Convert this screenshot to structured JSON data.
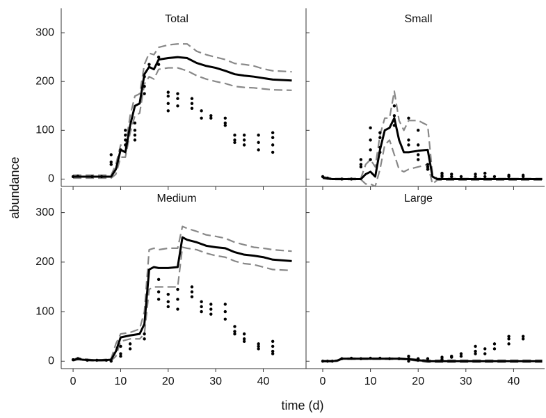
{
  "figure": {
    "xlabel": "time (d)",
    "ylabel": "abundance"
  },
  "chart_data": [
    {
      "type": "line",
      "title": "Total",
      "xlim": [
        -2.5,
        49
      ],
      "ylim": [
        -15,
        350
      ],
      "xticks": [
        0,
        10,
        20,
        30,
        40
      ],
      "yticks": [
        0,
        100,
        200,
        300
      ],
      "tick_labels": {
        "x": false,
        "y": true
      },
      "x": [
        0,
        2,
        4,
        6,
        8,
        9,
        10,
        11,
        12,
        13,
        14,
        15,
        16,
        17,
        18,
        20,
        22,
        24,
        26,
        28,
        30,
        32,
        34,
        36,
        38,
        40,
        42,
        46
      ],
      "series": [
        {
          "color": "#000000",
          "style": "solid",
          "values": [
            5,
            5,
            5,
            5,
            5,
            20,
            60,
            55,
            110,
            150,
            155,
            215,
            230,
            225,
            245,
            248,
            250,
            248,
            238,
            232,
            228,
            222,
            215,
            212,
            210,
            207,
            204,
            202
          ]
        },
        {
          "color": "#888888",
          "style": "dashed",
          "values": [
            8,
            8,
            8,
            8,
            8,
            30,
            70,
            65,
            130,
            170,
            175,
            235,
            258,
            255,
            270,
            275,
            277,
            277,
            262,
            255,
            250,
            245,
            237,
            235,
            232,
            226,
            222,
            220
          ]
        },
        {
          "color": "#888888",
          "style": "dashed",
          "values": [
            2,
            2,
            2,
            2,
            2,
            10,
            45,
            45,
            95,
            130,
            135,
            195,
            210,
            205,
            225,
            228,
            228,
            222,
            212,
            205,
            200,
            196,
            190,
            188,
            187,
            185,
            183,
            182
          ]
        }
      ],
      "points": {
        "color": "#000000",
        "x": [
          0,
          1,
          4,
          6,
          8,
          8,
          8,
          10,
          11,
          11,
          11,
          11,
          13,
          13,
          13,
          13,
          15,
          15,
          15,
          16,
          18,
          18,
          20,
          20,
          20,
          20,
          22,
          22,
          22,
          25,
          25,
          25,
          27,
          27,
          29,
          29,
          32,
          32,
          32,
          34,
          34,
          34,
          36,
          36,
          36,
          39,
          39,
          39,
          42,
          42,
          42,
          42
        ],
        "y": [
          5,
          6,
          5,
          5,
          50,
          35,
          30,
          60,
          100,
          90,
          80,
          70,
          115,
          100,
          90,
          80,
          210,
          190,
          175,
          235,
          250,
          235,
          178,
          170,
          155,
          140,
          175,
          165,
          150,
          165,
          155,
          145,
          140,
          125,
          130,
          125,
          125,
          115,
          110,
          90,
          80,
          75,
          90,
          80,
          70,
          90,
          75,
          60,
          95,
          85,
          70,
          55
        ]
      }
    },
    {
      "type": "line",
      "title": "Small",
      "xlim": [
        -3.5,
        46.5
      ],
      "ylim": [
        -15,
        350
      ],
      "xticks": [
        0,
        10,
        20,
        30,
        40
      ],
      "yticks": [
        0,
        100,
        200,
        300
      ],
      "tick_labels": {
        "x": false,
        "y": false
      },
      "x": [
        0,
        2,
        4,
        6,
        8,
        9,
        10,
        11,
        12,
        13,
        14,
        15,
        16,
        17,
        18,
        20,
        22,
        23,
        24,
        26,
        30,
        35,
        40,
        46
      ],
      "series": [
        {
          "color": "#000000",
          "style": "solid",
          "values": [
            3,
            0,
            0,
            0,
            0,
            10,
            15,
            5,
            60,
            100,
            105,
            125,
            80,
            55,
            55,
            58,
            60,
            5,
            0,
            0,
            0,
            0,
            0,
            0
          ]
        },
        {
          "color": "#888888",
          "style": "dashed",
          "values": [
            5,
            1,
            1,
            1,
            2,
            30,
            40,
            25,
            90,
            125,
            125,
            180,
            120,
            100,
            120,
            120,
            110,
            10,
            1,
            1,
            1,
            1,
            1,
            1
          ]
        },
        {
          "color": "#888888",
          "style": "dashed",
          "values": [
            1,
            -1,
            -1,
            -1,
            -1,
            -10,
            -10,
            -15,
            20,
            70,
            80,
            50,
            20,
            15,
            20,
            25,
            30,
            -10,
            -2,
            -2,
            -2,
            -2,
            -2,
            -2
          ]
        }
      ],
      "points": {
        "color": "#000000",
        "x": [
          0,
          1,
          4,
          6,
          8,
          8,
          8,
          10,
          10,
          10,
          10,
          12,
          12,
          12,
          12,
          15,
          15,
          15,
          15,
          18,
          18,
          18,
          20,
          20,
          20,
          20,
          22,
          22,
          22,
          25,
          25,
          25,
          27,
          27,
          29,
          32,
          32,
          34,
          34,
          36,
          39,
          39,
          42,
          42
        ],
        "y": [
          5,
          2,
          0,
          0,
          40,
          30,
          25,
          105,
          80,
          60,
          40,
          95,
          85,
          65,
          55,
          150,
          130,
          120,
          110,
          125,
          80,
          70,
          100,
          70,
          50,
          40,
          30,
          25,
          20,
          12,
          8,
          5,
          10,
          5,
          5,
          10,
          5,
          12,
          5,
          5,
          8,
          5,
          8,
          5
        ]
      }
    },
    {
      "type": "line",
      "title": "Medium",
      "xlim": [
        -2.5,
        49
      ],
      "ylim": [
        -15,
        350
      ],
      "xticks": [
        0,
        10,
        20,
        30,
        40
      ],
      "yticks": [
        0,
        100,
        200,
        300
      ],
      "tick_labels": {
        "x": true,
        "y": true
      },
      "x": [
        0,
        1,
        2,
        4,
        6,
        8,
        9,
        10,
        12,
        14,
        15,
        16,
        17,
        18,
        20,
        22,
        23,
        24,
        26,
        28,
        30,
        32,
        34,
        36,
        38,
        40,
        42,
        46
      ],
      "series": [
        {
          "color": "#000000",
          "style": "solid",
          "values": [
            2,
            5,
            3,
            2,
            2,
            3,
            20,
            48,
            52,
            55,
            75,
            185,
            190,
            188,
            188,
            190,
            250,
            245,
            240,
            233,
            230,
            228,
            220,
            215,
            213,
            210,
            205,
            202
          ]
        },
        {
          "color": "#888888",
          "style": "dashed",
          "values": [
            3,
            7,
            5,
            3,
            3,
            5,
            35,
            55,
            58,
            65,
            100,
            225,
            228,
            225,
            228,
            228,
            272,
            268,
            262,
            255,
            252,
            248,
            240,
            235,
            230,
            228,
            225,
            222
          ]
        },
        {
          "color": "#888888",
          "style": "dashed",
          "values": [
            1,
            3,
            2,
            1,
            1,
            1,
            10,
            40,
            45,
            45,
            55,
            145,
            150,
            150,
            150,
            150,
            230,
            228,
            225,
            218,
            213,
            210,
            202,
            197,
            195,
            190,
            185,
            183
          ]
        }
      ],
      "points": {
        "color": "#000000",
        "x": [
          0,
          1,
          3,
          5,
          7,
          8,
          10,
          10,
          10,
          12,
          12,
          15,
          15,
          18,
          18,
          18,
          20,
          20,
          20,
          22,
          22,
          22,
          25,
          25,
          25,
          27,
          27,
          27,
          29,
          29,
          29,
          32,
          32,
          32,
          34,
          34,
          34,
          36,
          36,
          36,
          39,
          39,
          39,
          42,
          42,
          42,
          42
        ],
        "y": [
          3,
          5,
          2,
          2,
          2,
          0,
          30,
          15,
          10,
          35,
          25,
          55,
          45,
          165,
          140,
          125,
          135,
          120,
          110,
          145,
          125,
          105,
          150,
          140,
          130,
          120,
          110,
          100,
          115,
          105,
          95,
          115,
          100,
          85,
          70,
          60,
          55,
          55,
          45,
          40,
          35,
          30,
          25,
          40,
          30,
          20,
          15
        ]
      }
    },
    {
      "type": "line",
      "title": "Large",
      "xlim": [
        -3.5,
        46.5
      ],
      "ylim": [
        -15,
        350
      ],
      "xticks": [
        0,
        10,
        20,
        30,
        40
      ],
      "yticks": [
        0,
        100,
        200,
        300
      ],
      "tick_labels": {
        "x": true,
        "y": false
      },
      "x": [
        0,
        2,
        3,
        4,
        6,
        10,
        16,
        18,
        20,
        22,
        24,
        26,
        30,
        40,
        46
      ],
      "series": [
        {
          "color": "#000000",
          "style": "solid",
          "values": [
            0,
            0,
            1,
            5,
            5,
            5,
            5,
            4,
            2,
            0,
            0,
            0,
            0,
            0,
            0
          ]
        },
        {
          "color": "#888888",
          "style": "dashed",
          "values": [
            1,
            1,
            2,
            6,
            6,
            6,
            6,
            5,
            4,
            2,
            2,
            2,
            2,
            2,
            2
          ]
        },
        {
          "color": "#888888",
          "style": "dashed",
          "values": [
            -1,
            -1,
            0,
            4,
            4,
            4,
            4,
            3,
            0,
            -2,
            -2,
            -2,
            -2,
            -2,
            -2
          ]
        }
      ],
      "points": {
        "color": "#000000",
        "x": [
          0,
          1,
          2,
          4,
          6,
          8,
          10,
          12,
          14,
          16,
          18,
          18,
          18,
          20,
          20,
          22,
          25,
          25,
          27,
          27,
          29,
          29,
          32,
          32,
          32,
          34,
          34,
          36,
          36,
          39,
          39,
          39,
          42,
          42
        ],
        "y": [
          0,
          0,
          0,
          5,
          6,
          5,
          6,
          6,
          5,
          5,
          10,
          5,
          0,
          5,
          2,
          5,
          8,
          4,
          10,
          8,
          15,
          10,
          30,
          20,
          15,
          25,
          15,
          35,
          25,
          50,
          45,
          35,
          50,
          45
        ]
      }
    }
  ]
}
